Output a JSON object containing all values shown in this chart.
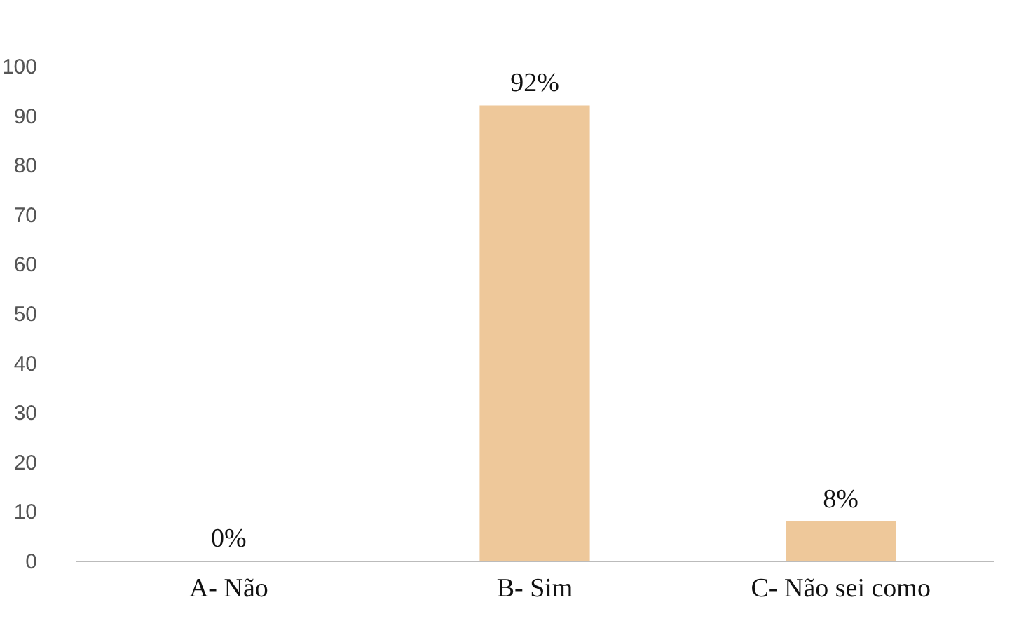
{
  "chart_data": {
    "type": "bar",
    "categories": [
      "A- Não",
      "B- Sim",
      "C- Não sei como"
    ],
    "values": [
      0,
      92,
      8
    ],
    "value_labels": [
      "0%",
      "92%",
      "8%"
    ],
    "color": "#eec89a",
    "ylim": [
      0,
      100
    ],
    "yticks": [
      0,
      10,
      20,
      30,
      40,
      50,
      60,
      70,
      80,
      90,
      100
    ],
    "grid": false
  }
}
